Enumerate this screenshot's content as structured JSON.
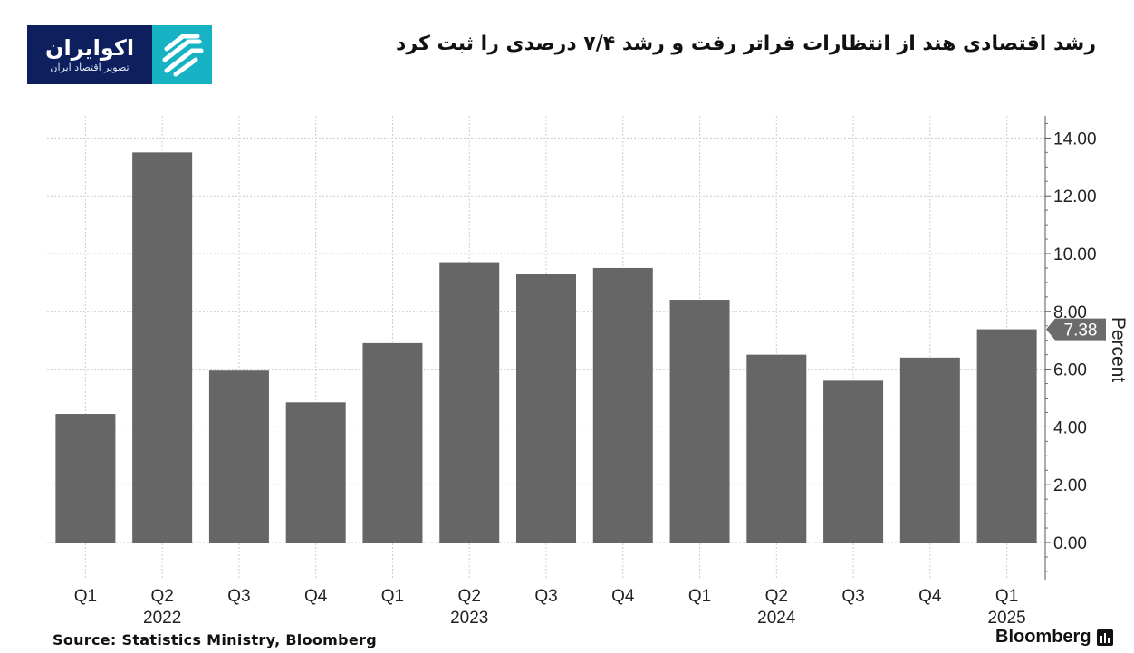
{
  "logo": {
    "name": "اکوایران",
    "tagline": "تصویر اقتصاد ایران",
    "icon": "ecoiran-emblem-icon"
  },
  "title": "رشد اقتصادی هند از انتظارات فراتر رفت و رشد ۷/۴ درصدی را ثبت کرد",
  "source": "Source:  Statistics Ministry, Bloomberg",
  "brand": "Bloomberg",
  "colors": {
    "bar": "#666666",
    "grid": "#cccccc",
    "logo_bg": "#0d1f5c",
    "logo_accent": "#17b3c4"
  },
  "chart_data": {
    "type": "bar",
    "categories": [
      "Q1",
      "Q2",
      "Q3",
      "Q4",
      "Q1",
      "Q2",
      "Q3",
      "Q4",
      "Q1",
      "Q2",
      "Q3",
      "Q4",
      "Q1"
    ],
    "years": [
      {
        "label": "2022",
        "index": 1
      },
      {
        "label": "2023",
        "index": 5
      },
      {
        "label": "2024",
        "index": 9
      },
      {
        "label": "2025",
        "index": 12
      }
    ],
    "values": [
      4.45,
      13.5,
      5.95,
      4.85,
      6.9,
      9.7,
      9.3,
      9.5,
      8.4,
      6.5,
      5.6,
      6.4,
      7.38
    ],
    "ylabel": "Percent",
    "yticks": [
      "14.00",
      "12.00",
      "10.00",
      "8.00",
      "6.00",
      "4.00",
      "2.00",
      "0.00"
    ],
    "ylim": [
      -1.2,
      14.8
    ],
    "last_value_label": "7.38",
    "y_axis_side": "right",
    "grid": true
  }
}
